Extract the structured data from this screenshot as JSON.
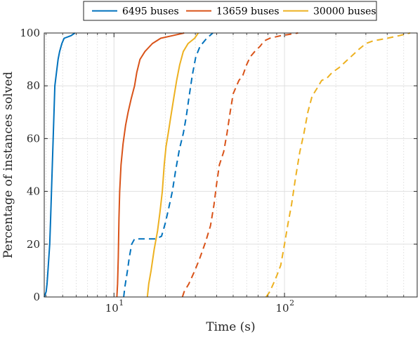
{
  "chart_data": {
    "type": "line",
    "xlabel": "Time (s)",
    "ylabel": "Percentage of instances solved",
    "x_scale": "log",
    "xlim": [
      3.9,
      600
    ],
    "ylim": [
      0,
      100
    ],
    "y_ticks": [
      0,
      20,
      40,
      60,
      80,
      100
    ],
    "x_ticks": [
      {
        "value": 10,
        "base": "10",
        "exp": "1"
      },
      {
        "value": 100,
        "base": "10",
        "exp": "2"
      }
    ],
    "grid": true,
    "legend_position": "top-outside",
    "series": [
      {
        "name": "6495 buses",
        "color": "#0072bd",
        "style": "solid",
        "points": [
          [
            3.9,
            0
          ],
          [
            4.0,
            2
          ],
          [
            4.05,
            5
          ],
          [
            4.1,
            10
          ],
          [
            4.2,
            20
          ],
          [
            4.25,
            30
          ],
          [
            4.3,
            40
          ],
          [
            4.35,
            50
          ],
          [
            4.4,
            60
          ],
          [
            4.45,
            70
          ],
          [
            4.5,
            80
          ],
          [
            4.6,
            85
          ],
          [
            4.7,
            90
          ],
          [
            4.8,
            93
          ],
          [
            4.95,
            96
          ],
          [
            5.1,
            98
          ],
          [
            5.6,
            99
          ],
          [
            5.9,
            100
          ]
        ]
      },
      {
        "name": "13659 buses",
        "color": "#d95319",
        "style": "solid",
        "points": [
          [
            10.4,
            0
          ],
          [
            10.5,
            5
          ],
          [
            10.6,
            15
          ],
          [
            10.7,
            30
          ],
          [
            10.8,
            40
          ],
          [
            11.0,
            50
          ],
          [
            11.3,
            58
          ],
          [
            11.7,
            65
          ],
          [
            12.1,
            70
          ],
          [
            12.6,
            75
          ],
          [
            13.2,
            80
          ],
          [
            13.6,
            85
          ],
          [
            14.2,
            90
          ],
          [
            15.2,
            93
          ],
          [
            16.8,
            96
          ],
          [
            18.8,
            98
          ],
          [
            22.0,
            99
          ],
          [
            25.8,
            100
          ]
        ]
      },
      {
        "name": "30000 buses",
        "color": "#edb120",
        "style": "solid",
        "points": [
          [
            15.7,
            0
          ],
          [
            16.0,
            5
          ],
          [
            16.5,
            10
          ],
          [
            17.2,
            18
          ],
          [
            18.0,
            25
          ],
          [
            18.6,
            32
          ],
          [
            19.2,
            40
          ],
          [
            19.7,
            50
          ],
          [
            20.2,
            57
          ],
          [
            20.8,
            62
          ],
          [
            21.5,
            68
          ],
          [
            22.5,
            76
          ],
          [
            23.3,
            82
          ],
          [
            24.3,
            88
          ],
          [
            25.5,
            93
          ],
          [
            27.2,
            96
          ],
          [
            29.7,
            98
          ],
          [
            31.2,
            100
          ]
        ]
      },
      {
        "name": "",
        "color": "#0072bd",
        "style": "dashed",
        "points": [
          [
            11.4,
            0
          ],
          [
            11.6,
            4
          ],
          [
            12.0,
            10
          ],
          [
            12.3,
            15
          ],
          [
            12.7,
            20
          ],
          [
            13.2,
            22
          ],
          [
            17.6,
            22
          ],
          [
            19.0,
            23
          ],
          [
            20.0,
            28
          ],
          [
            21.0,
            34
          ],
          [
            22.0,
            40
          ],
          [
            23.0,
            48
          ],
          [
            24.2,
            56
          ],
          [
            25.5,
            62
          ],
          [
            26.5,
            68
          ],
          [
            27.6,
            76
          ],
          [
            28.8,
            84
          ],
          [
            30.2,
            91
          ],
          [
            32.0,
            95
          ],
          [
            35.0,
            98
          ],
          [
            38.0,
            100
          ]
        ]
      },
      {
        "name": "",
        "color": "#d95319",
        "style": "dashed",
        "points": [
          [
            25.2,
            0
          ],
          [
            25.8,
            2
          ],
          [
            27.5,
            5
          ],
          [
            29.8,
            10
          ],
          [
            32.0,
            15
          ],
          [
            34.5,
            21
          ],
          [
            36.8,
            27
          ],
          [
            38.6,
            35
          ],
          [
            40.0,
            43
          ],
          [
            41.5,
            50
          ],
          [
            44.0,
            55
          ],
          [
            46.0,
            62
          ],
          [
            48.0,
            70
          ],
          [
            50.0,
            77
          ],
          [
            54.0,
            82
          ],
          [
            57.0,
            84
          ],
          [
            60.0,
            88
          ],
          [
            63.0,
            91
          ],
          [
            67.0,
            93
          ],
          [
            72.0,
            95
          ],
          [
            76.0,
            97
          ],
          [
            82.0,
            98
          ],
          [
            95.0,
            99
          ],
          [
            120.0,
            100
          ]
        ]
      },
      {
        "name": "",
        "color": "#edb120",
        "style": "dashed",
        "points": [
          [
            78.0,
            0
          ],
          [
            82.0,
            2
          ],
          [
            86.0,
            5
          ],
          [
            90.0,
            8
          ],
          [
            95.0,
            12
          ],
          [
            100.0,
            20
          ],
          [
            105.0,
            28
          ],
          [
            110.0,
            35
          ],
          [
            116.0,
            45
          ],
          [
            123.0,
            55
          ],
          [
            130.0,
            62
          ],
          [
            137.0,
            70
          ],
          [
            145.0,
            76
          ],
          [
            155.0,
            79
          ],
          [
            165.0,
            82
          ],
          [
            178.0,
            83
          ],
          [
            190.0,
            85
          ],
          [
            210.0,
            87
          ],
          [
            245.0,
            91
          ],
          [
            275.0,
            94
          ],
          [
            300.0,
            96
          ],
          [
            330.0,
            97
          ],
          [
            400.0,
            98
          ],
          [
            470.0,
            99
          ],
          [
            545.0,
            100
          ]
        ]
      }
    ]
  }
}
